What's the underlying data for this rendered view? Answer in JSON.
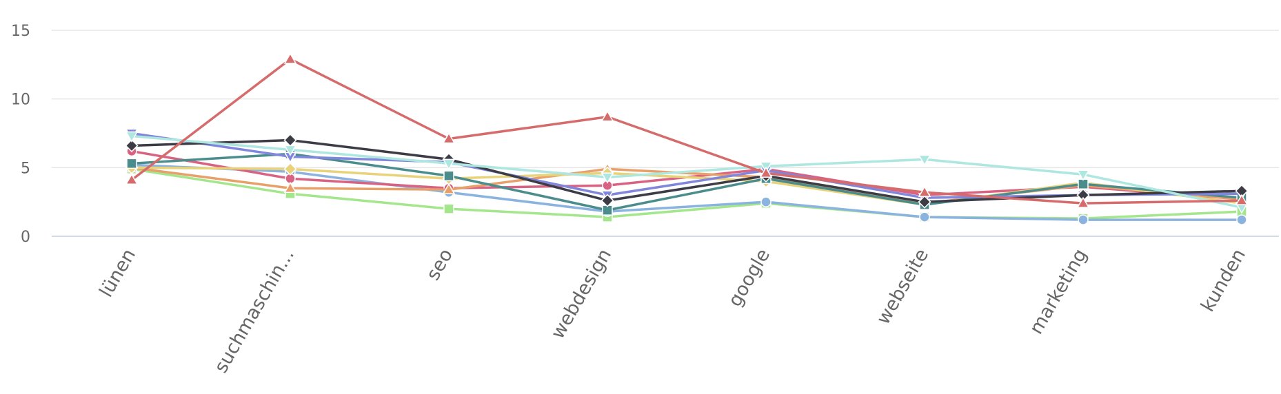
{
  "chart_data": {
    "type": "line",
    "title": "",
    "xlabel": "",
    "ylabel": "",
    "categories": [
      "lünen",
      "suchmaschin...",
      "seo",
      "webdesign",
      "google",
      "webseite",
      "marketing",
      "kunden"
    ],
    "ylim": [
      0,
      15
    ],
    "yticks": [
      0,
      5,
      10,
      15
    ],
    "grid": true,
    "legend": "none",
    "series": [
      {
        "color": "#d66b6b",
        "marker": "triangle",
        "values": [
          4.1,
          12.9,
          7.1,
          8.7,
          4.6,
          3.2,
          2.4,
          2.6
        ]
      },
      {
        "color": "#aee6e0",
        "marker": "triangle-down",
        "values": [
          7.3,
          6.3,
          5.3,
          4.3,
          5.1,
          5.6,
          4.5,
          2.1
        ]
      },
      {
        "color": "#3c3c46",
        "marker": "diamond",
        "values": [
          6.6,
          7.0,
          5.6,
          2.6,
          4.4,
          2.5,
          3.0,
          3.3
        ]
      },
      {
        "color": "#7f86db",
        "marker": "triangle-down",
        "values": [
          7.5,
          5.8,
          5.4,
          3.0,
          4.8,
          2.8,
          3.0,
          3.1
        ]
      },
      {
        "color": "#4b8c8c",
        "marker": "square",
        "values": [
          5.3,
          6.0,
          4.4,
          1.9,
          4.2,
          2.3,
          3.8,
          2.8
        ]
      },
      {
        "color": "#e8d27a",
        "marker": "diamond",
        "values": [
          5.0,
          4.9,
          4.2,
          4.6,
          4.0,
          2.3,
          3.9,
          2.4
        ]
      },
      {
        "color": "#e8a06a",
        "marker": "triangle",
        "values": [
          5.0,
          3.5,
          3.4,
          4.9,
          4.3,
          2.4,
          3.7,
          2.7
        ]
      },
      {
        "color": "#d96282",
        "marker": "circle",
        "values": [
          6.2,
          4.2,
          3.5,
          3.7,
          4.9,
          3.0,
          3.6,
          2.7
        ]
      },
      {
        "color": "#8ab3e0",
        "marker": "circle",
        "values": [
          5.2,
          4.7,
          3.2,
          1.8,
          2.5,
          1.4,
          1.2,
          1.2
        ]
      },
      {
        "color": "#a3e68c",
        "marker": "square",
        "values": [
          4.9,
          3.1,
          2.0,
          1.4,
          2.4,
          1.4,
          1.3,
          1.8
        ]
      }
    ]
  }
}
